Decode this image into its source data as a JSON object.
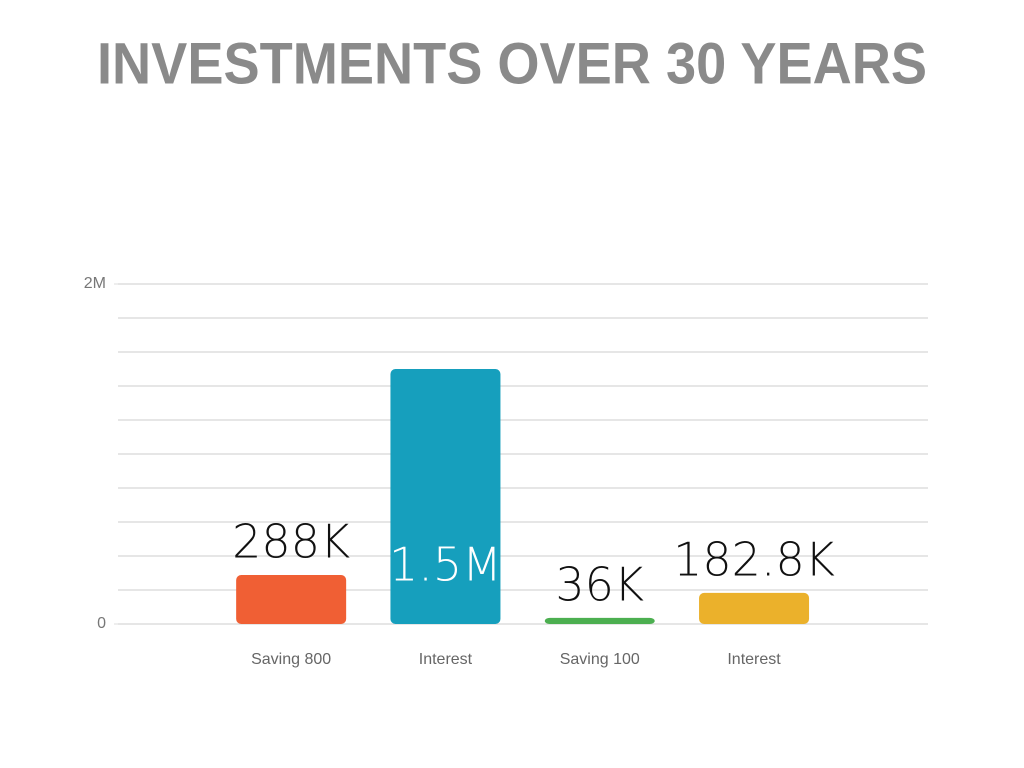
{
  "chart_data": {
    "type": "bar",
    "title": "INVESTMENTS OVER 30 YEARS",
    "categories": [
      "Saving 800",
      "Interest",
      "Saving 100",
      "Interest"
    ],
    "values": [
      288000,
      1500000,
      36000,
      182800
    ],
    "value_labels": [
      "288K",
      "1.5M",
      "36K",
      "182.8K"
    ],
    "colors": [
      "#f05f34",
      "#169fbd",
      "#4caf50",
      "#ebb12b"
    ],
    "ylim": [
      0,
      2000000
    ],
    "yticks": [
      0,
      {
        "value": 2000000,
        "label": "2M"
      }
    ],
    "grid_yticks": [
      0,
      200000,
      400000,
      600000,
      800000,
      1000000,
      1200000,
      1400000,
      1600000,
      1800000,
      2000000
    ],
    "grid": true
  }
}
